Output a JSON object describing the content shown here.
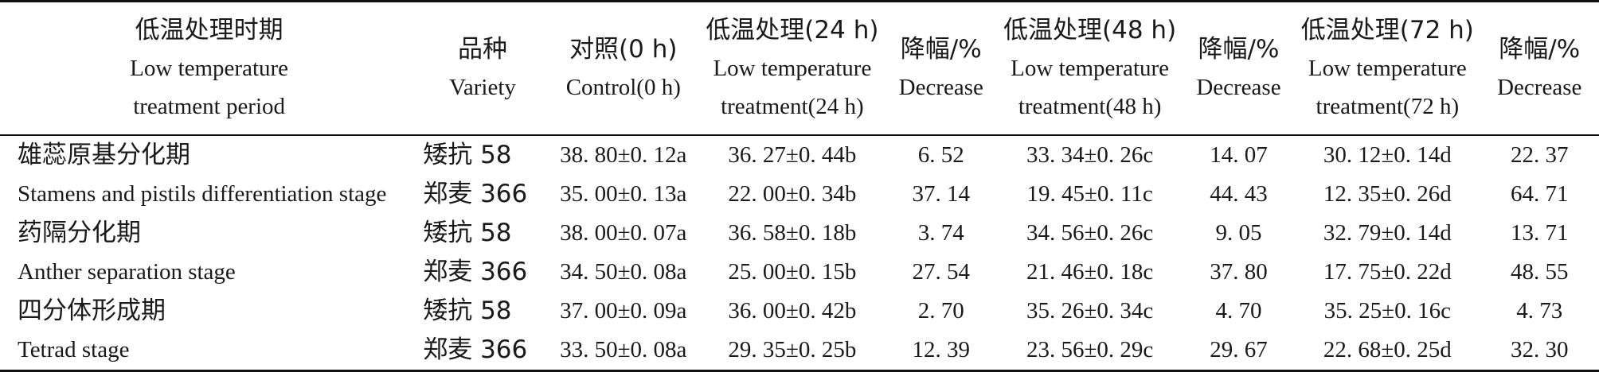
{
  "table": {
    "headers": [
      {
        "lines": [
          "低温处理时期",
          "Low temperature",
          "treatment period"
        ]
      },
      {
        "lines": [
          "品种",
          "Variety"
        ]
      },
      {
        "lines": [
          "对照(0 h)",
          "Control(0 h)"
        ]
      },
      {
        "lines": [
          "低温处理(24 h)",
          "Low temperature",
          "treatment(24 h)"
        ]
      },
      {
        "lines": [
          "降幅/%",
          "Decrease"
        ]
      },
      {
        "lines": [
          "低温处理(48 h)",
          "Low temperature",
          "treatment(48 h)"
        ]
      },
      {
        "lines": [
          "降幅/%",
          "Decrease"
        ]
      },
      {
        "lines": [
          "低温处理(72 h)",
          "Low temperature",
          "treatment(72 h)"
        ]
      },
      {
        "lines": [
          "降幅/%",
          "Decrease"
        ]
      }
    ],
    "rows": [
      {
        "stage": "雄蕊原基分化期",
        "variety": "矮抗 58",
        "control": "38. 80±0. 12a",
        "t24": "36. 27±0. 44b",
        "d24": "6. 52",
        "t48": "33. 34±0. 26c",
        "d48": "14. 07",
        "t72": "30. 12±0. 14d",
        "d72": "22. 37"
      },
      {
        "stage": "Stamens and pistils differentiation stage",
        "variety": "郑麦 366",
        "control": "35. 00±0. 13a",
        "t24": "22. 00±0. 34b",
        "d24": "37. 14",
        "t48": "19. 45±0. 11c",
        "d48": "44. 43",
        "t72": "12. 35±0. 26d",
        "d72": "64. 71"
      },
      {
        "stage": "药隔分化期",
        "variety": "矮抗 58",
        "control": "38. 00±0. 07a",
        "t24": "36. 58±0. 18b",
        "d24": "3. 74",
        "t48": "34. 56±0. 26c",
        "d48": "9. 05",
        "t72": "32. 79±0. 14d",
        "d72": "13. 71"
      },
      {
        "stage": "Anther separation stage",
        "variety": "郑麦 366",
        "control": "34. 50±0. 08a",
        "t24": "25. 00±0. 15b",
        "d24": "27. 54",
        "t48": "21. 46±0. 18c",
        "d48": "37. 80",
        "t72": "17. 75±0. 22d",
        "d72": "48. 55"
      },
      {
        "stage": "四分体形成期",
        "variety": "矮抗 58",
        "control": "37. 00±0. 09a",
        "t24": "36. 00±0. 42b",
        "d24": "2. 70",
        "t48": "35. 26±0. 34c",
        "d48": "4. 70",
        "t72": "35. 25±0. 16c",
        "d72": "4. 73"
      },
      {
        "stage": "Tetrad stage",
        "variety": "郑麦 366",
        "control": "33. 50±0. 08a",
        "t24": "29. 35±0. 25b",
        "d24": "12. 39",
        "t48": "23. 56±0. 29c",
        "d48": "29. 67",
        "t72": "22. 68±0. 25d",
        "d72": "32. 30"
      }
    ]
  }
}
